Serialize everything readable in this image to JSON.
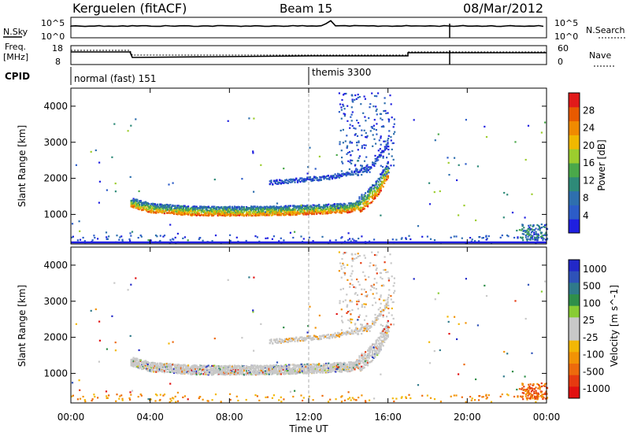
{
  "header": {
    "title": "Kerguelen (fitACF)",
    "beam": "Beam 15",
    "date": "08/Mar/2012"
  },
  "noise_panel": {
    "left_label": "N.Sky",
    "right_label": "N.Search",
    "left_ticks": [
      "10^5",
      "10^0"
    ],
    "right_ticks": [
      "10^5",
      "10^0"
    ]
  },
  "freq_panel": {
    "left_label_1": "Freq.",
    "left_label_2": "[MHz]",
    "right_label": "Nave",
    "left_ticks": [
      "18",
      "8"
    ],
    "right_ticks": [
      "60",
      "0"
    ]
  },
  "cpid": {
    "label": "CPID",
    "modes": [
      {
        "name": "normal (fast) 151",
        "start_hour": 0
      },
      {
        "name": "themis 3300",
        "start_hour": 12
      }
    ]
  },
  "x_axis": {
    "label": "Time UT",
    "range": [
      0,
      24
    ],
    "ticks": [
      "00:00",
      "04:00",
      "08:00",
      "12:00",
      "16:00",
      "20:00",
      "00:00"
    ]
  },
  "colors": {
    "power_scale": [
      "#1f1fe0",
      "#2c5cc8",
      "#2e6fae",
      "#2e8a78",
      "#4aa84a",
      "#9ccd2e",
      "#f0b800",
      "#f08a00",
      "#e85a00",
      "#e21a1a"
    ],
    "velocity_scale": [
      "#2228c8",
      "#2e52b8",
      "#2f7a8a",
      "#2f8f4a",
      "#88cc33",
      "#c8c8c8",
      "#c8c8c8",
      "#f2b705",
      "#f29305",
      "#ed6a0c",
      "#e63a10",
      "#e11010"
    ]
  },
  "chart_data": [
    {
      "type": "heatmap",
      "name": "power",
      "ylabel": "Slant Range [km]",
      "ylim": [
        180,
        4500
      ],
      "yticks": [
        1000,
        2000,
        3000,
        4000
      ],
      "colorbar_label": "Power [dB]",
      "colorbar_range": [
        0,
        32
      ],
      "colorbar_ticks": [
        4,
        8,
        12,
        16,
        20,
        24,
        28
      ],
      "main_echo_band": {
        "hours": [
          3.0,
          4.0,
          6.0,
          8.0,
          10.0,
          12.0,
          13.0,
          14.0,
          14.5,
          15.0,
          15.5,
          16.0
        ],
        "range_km": [
          1350,
          1200,
          1120,
          1110,
          1120,
          1150,
          1180,
          1200,
          1280,
          1500,
          1800,
          2300
        ]
      },
      "upper_band": {
        "hours": [
          10.0,
          11.0,
          12.0,
          13.0,
          14.0,
          15.0,
          15.5,
          16.0
        ],
        "range_km": [
          1900,
          1950,
          2000,
          2050,
          2150,
          2300,
          2600,
          3000
        ]
      }
    },
    {
      "type": "heatmap",
      "name": "velocity",
      "ylabel": "Slant Range [km]",
      "ylim": [
        180,
        4500
      ],
      "yticks": [
        1000,
        2000,
        3000,
        4000
      ],
      "colorbar_label": "Velocity [m s^-1]",
      "colorbar_ticks": [
        "1000",
        "500",
        "100",
        "25",
        "-25",
        "-100",
        "-500",
        "-1000"
      ]
    }
  ]
}
